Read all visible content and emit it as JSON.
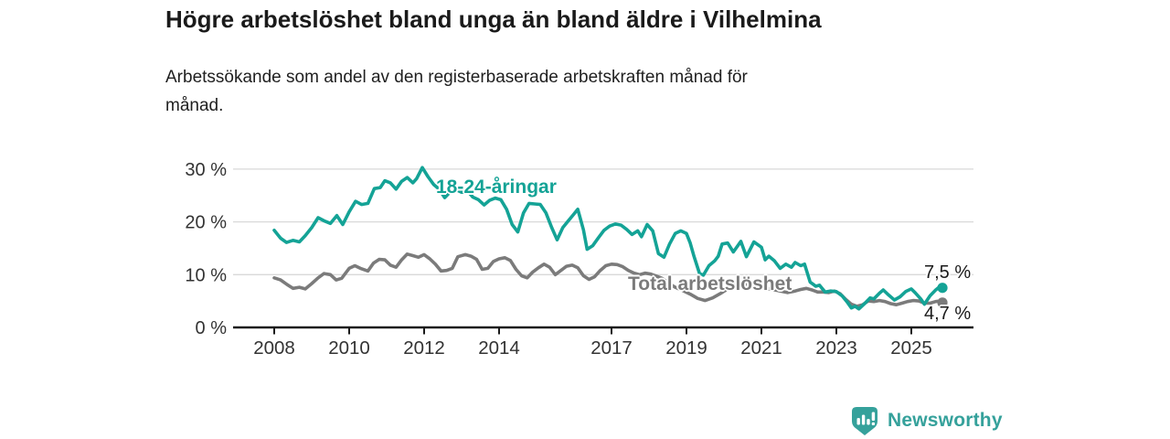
{
  "title": "Högre arbetslöshet bland unga än bland äldre i Vilhelmina",
  "subtitle_line1": "Arbetssökande som andel av den registerbaserade arbetskraften månad för",
  "subtitle_line2": "månad.",
  "branding": {
    "name": "Newsworthy",
    "icon": "bar-chart-bubble-icon",
    "color": "#35a19b"
  },
  "colors": {
    "youth_line": "#14a396",
    "total_line": "#7b7b7b",
    "title_text": "#1a1a1a",
    "axis_text": "#333333",
    "gridline": "#d9d9d9",
    "axis_line": "#1a1a1a",
    "background": "#ffffff"
  },
  "chart_data": {
    "type": "line",
    "title": "Högre arbetslöshet bland unga än bland äldre i Vilhelmina",
    "subtitle": "Arbetssökande som andel av den registerbaserade arbetskraften månad för månad.",
    "xlabel": "",
    "ylabel": "",
    "grid": "horizontal",
    "legend": "inline-labels",
    "x_axis": {
      "ticks": [
        2008,
        2010,
        2012,
        2014,
        2017,
        2019,
        2021,
        2023,
        2025
      ],
      "tick_labels": [
        "2008",
        "2010",
        "2012",
        "2014",
        "2017",
        "2019",
        "2021",
        "2023",
        "2025"
      ],
      "range": [
        2006.9,
        2026.7
      ]
    },
    "y_axis": {
      "ticks": [
        0,
        10,
        20,
        30
      ],
      "tick_labels": [
        "0 %",
        "10 %",
        "20 %",
        "30 %"
      ],
      "range": [
        0,
        32.6
      ]
    },
    "series": [
      {
        "name": "18-24-åringar",
        "color": "#14a396",
        "end_label": "7,5 %",
        "end_value": 7.5,
        "points": [
          [
            2008.0,
            18.4
          ],
          [
            2008.17,
            16.9
          ],
          [
            2008.33,
            16.1
          ],
          [
            2008.5,
            16.5
          ],
          [
            2008.67,
            16.2
          ],
          [
            2008.83,
            17.4
          ],
          [
            2009.0,
            18.9
          ],
          [
            2009.17,
            20.8
          ],
          [
            2009.33,
            20.2
          ],
          [
            2009.5,
            19.7
          ],
          [
            2009.67,
            21.2
          ],
          [
            2009.83,
            19.5
          ],
          [
            2010.0,
            21.9
          ],
          [
            2010.17,
            23.9
          ],
          [
            2010.33,
            23.3
          ],
          [
            2010.5,
            23.5
          ],
          [
            2010.67,
            26.3
          ],
          [
            2010.83,
            26.5
          ],
          [
            2010.95,
            27.8
          ],
          [
            2011.1,
            27.4
          ],
          [
            2011.25,
            26.2
          ],
          [
            2011.4,
            27.7
          ],
          [
            2011.55,
            28.4
          ],
          [
            2011.7,
            27.4
          ],
          [
            2011.8,
            28.2
          ],
          [
            2011.95,
            30.3
          ],
          [
            2012.1,
            28.6
          ],
          [
            2012.25,
            27.1
          ],
          [
            2012.4,
            26.2
          ],
          [
            2012.55,
            24.6
          ],
          [
            2012.7,
            25.7
          ],
          [
            2012.85,
            26.1
          ],
          [
            2013.0,
            25.6
          ],
          [
            2013.15,
            25.9
          ],
          [
            2013.3,
            24.7
          ],
          [
            2013.45,
            24.2
          ],
          [
            2013.6,
            23.2
          ],
          [
            2013.75,
            24.1
          ],
          [
            2013.9,
            24.5
          ],
          [
            2014.05,
            24.2
          ],
          [
            2014.2,
            22.4
          ],
          [
            2014.35,
            19.5
          ],
          [
            2014.5,
            18.1
          ],
          [
            2014.65,
            21.7
          ],
          [
            2014.8,
            23.5
          ],
          [
            2014.95,
            23.4
          ],
          [
            2015.1,
            23.3
          ],
          [
            2015.25,
            21.7
          ],
          [
            2015.4,
            19.0
          ],
          [
            2015.55,
            16.6
          ],
          [
            2015.7,
            18.9
          ],
          [
            2015.85,
            20.2
          ],
          [
            2016.0,
            21.5
          ],
          [
            2016.1,
            22.4
          ],
          [
            2016.25,
            18.5
          ],
          [
            2016.35,
            14.8
          ],
          [
            2016.5,
            15.5
          ],
          [
            2016.65,
            17.0
          ],
          [
            2016.8,
            18.4
          ],
          [
            2016.95,
            19.2
          ],
          [
            2017.1,
            19.6
          ],
          [
            2017.25,
            19.4
          ],
          [
            2017.4,
            18.6
          ],
          [
            2017.55,
            17.6
          ],
          [
            2017.7,
            18.3
          ],
          [
            2017.8,
            17.2
          ],
          [
            2017.95,
            19.5
          ],
          [
            2018.1,
            18.3
          ],
          [
            2018.25,
            14.0
          ],
          [
            2018.4,
            13.3
          ],
          [
            2018.55,
            15.8
          ],
          [
            2018.7,
            17.8
          ],
          [
            2018.85,
            18.3
          ],
          [
            2019.0,
            17.8
          ],
          [
            2019.1,
            16.0
          ],
          [
            2019.2,
            13.5
          ],
          [
            2019.35,
            10.2
          ],
          [
            2019.45,
            9.9
          ],
          [
            2019.6,
            11.7
          ],
          [
            2019.75,
            12.6
          ],
          [
            2019.85,
            13.5
          ],
          [
            2019.95,
            15.8
          ],
          [
            2020.1,
            16.0
          ],
          [
            2020.25,
            14.3
          ],
          [
            2020.45,
            16.3
          ],
          [
            2020.6,
            13.4
          ],
          [
            2020.8,
            16.2
          ],
          [
            2021.0,
            15.2
          ],
          [
            2021.1,
            12.8
          ],
          [
            2021.2,
            13.5
          ],
          [
            2021.35,
            12.6
          ],
          [
            2021.5,
            11.2
          ],
          [
            2021.65,
            12.0
          ],
          [
            2021.8,
            11.4
          ],
          [
            2021.9,
            12.3
          ],
          [
            2022.05,
            11.7
          ],
          [
            2022.15,
            12.0
          ],
          [
            2022.3,
            8.6
          ],
          [
            2022.45,
            7.8
          ],
          [
            2022.55,
            8.0
          ],
          [
            2022.7,
            6.7
          ],
          [
            2022.85,
            6.9
          ],
          [
            2023.0,
            6.8
          ],
          [
            2023.15,
            6.0
          ],
          [
            2023.3,
            4.7
          ],
          [
            2023.4,
            3.7
          ],
          [
            2023.5,
            4.0
          ],
          [
            2023.6,
            3.5
          ],
          [
            2023.75,
            4.5
          ],
          [
            2023.9,
            5.6
          ],
          [
            2024.0,
            5.4
          ],
          [
            2024.15,
            6.5
          ],
          [
            2024.25,
            7.1
          ],
          [
            2024.4,
            6.1
          ],
          [
            2024.55,
            5.2
          ],
          [
            2024.7,
            5.8
          ],
          [
            2024.85,
            6.8
          ],
          [
            2025.0,
            7.3
          ],
          [
            2025.1,
            6.6
          ],
          [
            2025.25,
            5.4
          ],
          [
            2025.35,
            4.4
          ],
          [
            2025.5,
            6.0
          ],
          [
            2025.65,
            7.1
          ],
          [
            2025.75,
            7.7
          ],
          [
            2025.83,
            7.5
          ]
        ]
      },
      {
        "name": "Total arbetslöshet",
        "color": "#7b7b7b",
        "end_label": "4,7 %",
        "end_value": 4.7,
        "points": [
          [
            2008.0,
            9.4
          ],
          [
            2008.17,
            9.0
          ],
          [
            2008.33,
            8.2
          ],
          [
            2008.5,
            7.4
          ],
          [
            2008.67,
            7.6
          ],
          [
            2008.83,
            7.3
          ],
          [
            2009.0,
            8.3
          ],
          [
            2009.17,
            9.4
          ],
          [
            2009.33,
            10.2
          ],
          [
            2009.5,
            10.0
          ],
          [
            2009.65,
            9.0
          ],
          [
            2009.8,
            9.3
          ],
          [
            2010.0,
            11.2
          ],
          [
            2010.15,
            11.7
          ],
          [
            2010.3,
            11.2
          ],
          [
            2010.5,
            10.7
          ],
          [
            2010.65,
            12.2
          ],
          [
            2010.8,
            12.9
          ],
          [
            2010.95,
            12.8
          ],
          [
            2011.1,
            11.8
          ],
          [
            2011.25,
            11.4
          ],
          [
            2011.4,
            12.8
          ],
          [
            2011.55,
            13.9
          ],
          [
            2011.7,
            13.6
          ],
          [
            2011.85,
            13.3
          ],
          [
            2012.0,
            13.8
          ],
          [
            2012.15,
            13.0
          ],
          [
            2012.3,
            12.0
          ],
          [
            2012.45,
            10.7
          ],
          [
            2012.6,
            10.8
          ],
          [
            2012.75,
            11.2
          ],
          [
            2012.9,
            13.4
          ],
          [
            2013.1,
            13.8
          ],
          [
            2013.25,
            13.5
          ],
          [
            2013.4,
            12.9
          ],
          [
            2013.55,
            11.0
          ],
          [
            2013.7,
            11.2
          ],
          [
            2013.85,
            12.5
          ],
          [
            2014.0,
            13.0
          ],
          [
            2014.15,
            13.2
          ],
          [
            2014.3,
            12.7
          ],
          [
            2014.45,
            11.0
          ],
          [
            2014.6,
            9.8
          ],
          [
            2014.75,
            9.4
          ],
          [
            2014.9,
            10.5
          ],
          [
            2015.05,
            11.3
          ],
          [
            2015.2,
            12.0
          ],
          [
            2015.35,
            11.4
          ],
          [
            2015.5,
            10.0
          ],
          [
            2015.65,
            10.8
          ],
          [
            2015.8,
            11.6
          ],
          [
            2015.95,
            11.8
          ],
          [
            2016.1,
            11.3
          ],
          [
            2016.25,
            9.8
          ],
          [
            2016.4,
            9.1
          ],
          [
            2016.55,
            9.6
          ],
          [
            2016.7,
            10.8
          ],
          [
            2016.85,
            11.7
          ],
          [
            2017.0,
            12.0
          ],
          [
            2017.15,
            11.9
          ],
          [
            2017.3,
            11.5
          ],
          [
            2017.45,
            10.8
          ],
          [
            2017.6,
            10.3
          ],
          [
            2017.75,
            10.0
          ],
          [
            2017.9,
            10.3
          ],
          [
            2018.05,
            10.1
          ],
          [
            2018.2,
            9.7
          ],
          [
            2018.35,
            9.3
          ],
          [
            2018.5,
            8.5
          ],
          [
            2018.7,
            7.6
          ],
          [
            2018.9,
            7.0
          ],
          [
            2019.1,
            6.3
          ],
          [
            2019.3,
            5.5
          ],
          [
            2019.5,
            5.1
          ],
          [
            2019.7,
            5.6
          ],
          [
            2019.9,
            6.4
          ],
          [
            2020.1,
            7.3
          ],
          [
            2020.3,
            8.0
          ],
          [
            2020.5,
            8.3
          ],
          [
            2020.7,
            8.1
          ],
          [
            2020.9,
            7.8
          ],
          [
            2021.1,
            7.5
          ],
          [
            2021.3,
            7.2
          ],
          [
            2021.5,
            6.9
          ],
          [
            2021.7,
            6.6
          ],
          [
            2021.9,
            6.9
          ],
          [
            2022.05,
            7.2
          ],
          [
            2022.2,
            7.4
          ],
          [
            2022.35,
            7.1
          ],
          [
            2022.5,
            6.7
          ],
          [
            2022.65,
            6.7
          ],
          [
            2022.8,
            6.6
          ],
          [
            2022.95,
            6.9
          ],
          [
            2023.1,
            6.4
          ],
          [
            2023.25,
            5.3
          ],
          [
            2023.4,
            4.4
          ],
          [
            2023.55,
            4.0
          ],
          [
            2023.7,
            4.3
          ],
          [
            2023.85,
            5.0
          ],
          [
            2024.0,
            4.9
          ],
          [
            2024.15,
            5.1
          ],
          [
            2024.3,
            4.9
          ],
          [
            2024.45,
            4.5
          ],
          [
            2024.6,
            4.3
          ],
          [
            2024.75,
            4.6
          ],
          [
            2024.9,
            4.9
          ],
          [
            2025.05,
            5.1
          ],
          [
            2025.2,
            5.0
          ],
          [
            2025.35,
            4.6
          ],
          [
            2025.5,
            4.6
          ],
          [
            2025.65,
            4.9
          ],
          [
            2025.75,
            5.0
          ],
          [
            2025.83,
            4.7
          ]
        ]
      }
    ]
  }
}
